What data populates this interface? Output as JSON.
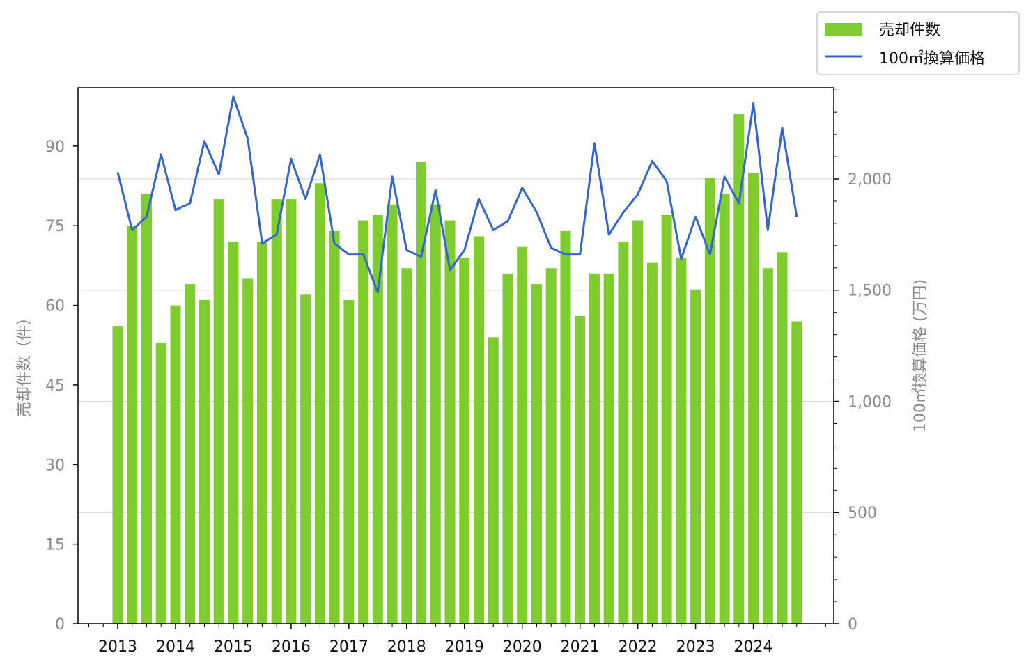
{
  "chart_data": {
    "type": "bar",
    "x_ticks": [
      "2013",
      "2014",
      "2015",
      "2016",
      "2017",
      "2018",
      "2019",
      "2020",
      "2021",
      "2022",
      "2023",
      "2024"
    ],
    "y_left": {
      "label": "売却件数（件）",
      "ylim": [
        0,
        101
      ],
      "ticks": [
        "0",
        "15",
        "30",
        "45",
        "60",
        "75",
        "90"
      ]
    },
    "y_right": {
      "label": "100㎡換算価格 (万円)",
      "ylim": [
        0,
        2410
      ],
      "ticks": [
        "0",
        "500",
        "1,000",
        "1,500",
        "2,000"
      ]
    },
    "grid": "horizontal, right axis",
    "legend": {
      "placement": "top-right, outside plot",
      "entries": [
        "売却件数",
        "100㎡換算価格"
      ]
    },
    "series": [
      {
        "name": "売却件数",
        "type": "bar",
        "color": "#7fcc2f",
        "values": [
          56,
          75,
          81,
          53,
          60,
          64,
          61,
          80,
          72,
          65,
          72,
          80,
          80,
          62,
          83,
          74,
          61,
          76,
          77,
          79,
          67,
          87,
          79,
          76,
          69,
          73,
          54,
          66,
          71,
          64,
          67,
          74,
          58,
          66,
          66,
          72,
          76,
          68,
          77,
          69,
          63,
          84,
          81,
          96,
          85,
          67,
          70,
          57
        ]
      },
      {
        "name": "100㎡換算価格",
        "type": "line",
        "color": "#3366cc",
        "values": [
          2030,
          1770,
          1830,
          2110,
          1860,
          1890,
          2170,
          2020,
          2370,
          2180,
          1710,
          1750,
          2090,
          1910,
          2110,
          1710,
          1660,
          1660,
          1490,
          2010,
          1680,
          1650,
          1950,
          1590,
          1680,
          1910,
          1770,
          1810,
          1960,
          1850,
          1690,
          1660,
          1660,
          2160,
          1750,
          1850,
          1930,
          2080,
          1990,
          1640,
          1830,
          1660,
          2010,
          1890,
          2340,
          1770,
          2230,
          1830
        ]
      }
    ]
  }
}
